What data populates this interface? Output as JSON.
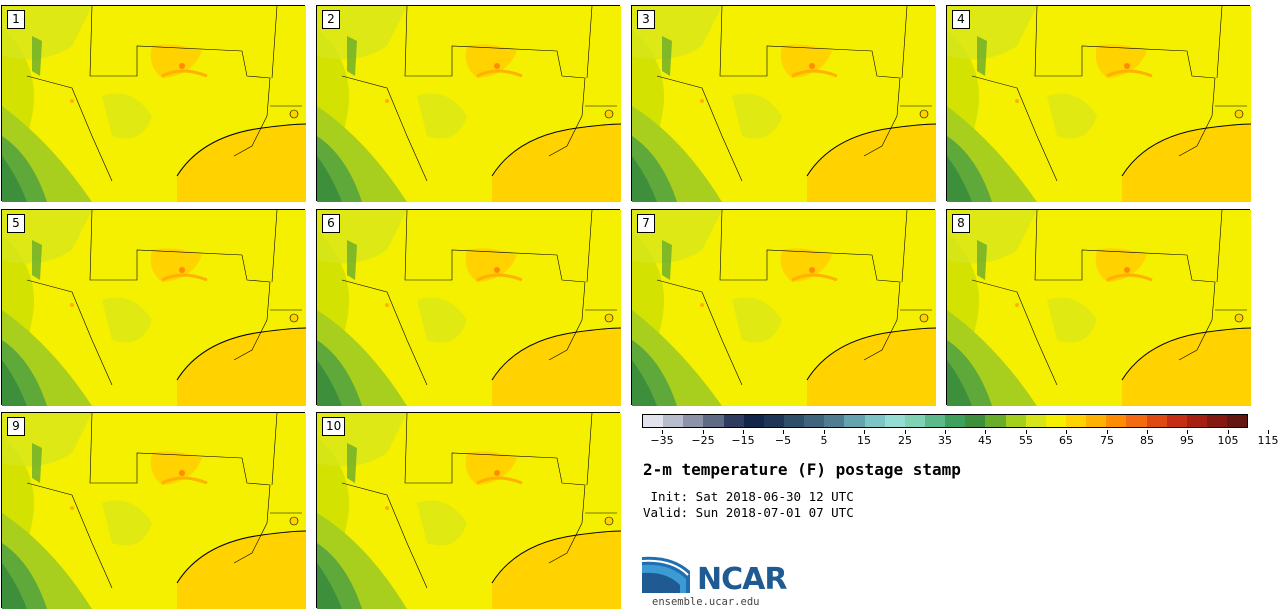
{
  "panels": [
    "1",
    "2",
    "3",
    "4",
    "5",
    "6",
    "7",
    "8",
    "9",
    "10"
  ],
  "colorbar": {
    "colors": [
      "#e2e2ec",
      "#b9bccc",
      "#8c92a8",
      "#5f6a85",
      "#2e3c5f",
      "#132548",
      "#1e3656",
      "#2f4e69",
      "#3f647c",
      "#4f7c8f",
      "#65a3ae",
      "#7dc4c4",
      "#95dcd3",
      "#7fd2b4",
      "#5bb98a",
      "#3f9f5c",
      "#3e8f3c",
      "#6aad2a",
      "#a6cf1d",
      "#d7e61a",
      "#f5f000",
      "#ffd200",
      "#ffb100",
      "#ff8c00",
      "#f26b12",
      "#de4a12",
      "#c42e12",
      "#a51f12",
      "#841912",
      "#661611"
    ],
    "tick_labels": [
      "-35",
      "-25",
      "-15",
      "-5",
      "5",
      "15",
      "25",
      "35",
      "45",
      "55",
      "65",
      "75",
      "85",
      "95",
      "105",
      "115"
    ]
  },
  "title": "2-m temperature (F) postage stamp",
  "init": " Init: Sat 2018-06-30 12 UTC",
  "valid": "Valid: Sun 2018-07-01 07 UTC",
  "logo_text": "NCAR",
  "url": "ensemble.ucar.edu"
}
